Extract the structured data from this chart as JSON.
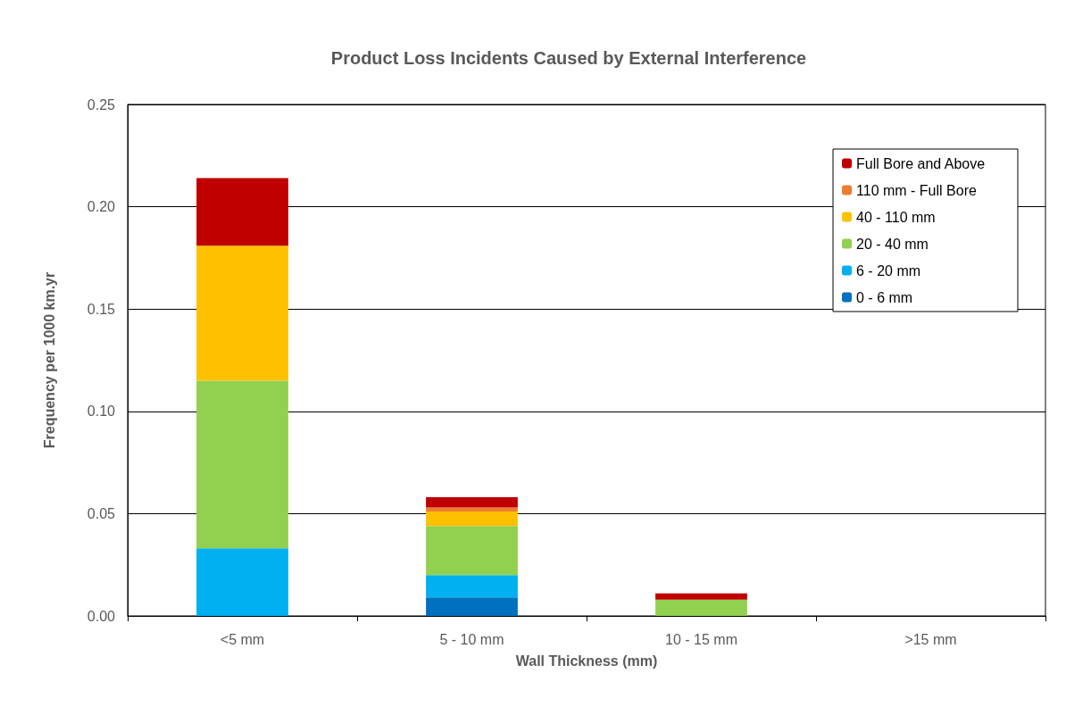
{
  "chart_data": {
    "type": "bar",
    "title": "Product Loss Incidents Caused by External Interference",
    "xlabel": "Wall Thickness (mm)",
    "ylabel": "Frequency per 1000 km.yr",
    "categories": [
      "<5 mm",
      "5 - 10 mm",
      "10 - 15 mm",
      ">15 mm"
    ],
    "stacked": true,
    "series": [
      {
        "name": "0 - 6 mm",
        "color": "#0070c0",
        "values": [
          0,
          0.009,
          0,
          0
        ]
      },
      {
        "name": "6 - 20 mm",
        "color": "#00b0f0",
        "values": [
          0.033,
          0.011,
          0,
          0
        ]
      },
      {
        "name": "20 - 40 mm",
        "color": "#92d050",
        "values": [
          0.082,
          0.024,
          0.008,
          0
        ]
      },
      {
        "name": "40 - 110 mm",
        "color": "#ffc000",
        "values": [
          0.066,
          0.007,
          0,
          0
        ]
      },
      {
        "name": "110 mm - Full Bore",
        "color": "#ed7d31",
        "values": [
          0,
          0.002,
          0,
          0
        ]
      },
      {
        "name": "Full Bore and Above",
        "color": "#c00000",
        "values": [
          0.033,
          0.005,
          0.003,
          0
        ]
      }
    ],
    "ylim": [
      0,
      0.25
    ],
    "yticks": [
      {
        "value": 0,
        "label": "0.00"
      },
      {
        "value": 0.05,
        "label": "0.05"
      },
      {
        "value": 0.1,
        "label": "0.10"
      },
      {
        "value": 0.15,
        "label": "0.15"
      },
      {
        "value": 0.2,
        "label": "0.20"
      },
      {
        "value": 0.25,
        "label": "0.25"
      }
    ],
    "grid": "y",
    "legend": "top right"
  }
}
